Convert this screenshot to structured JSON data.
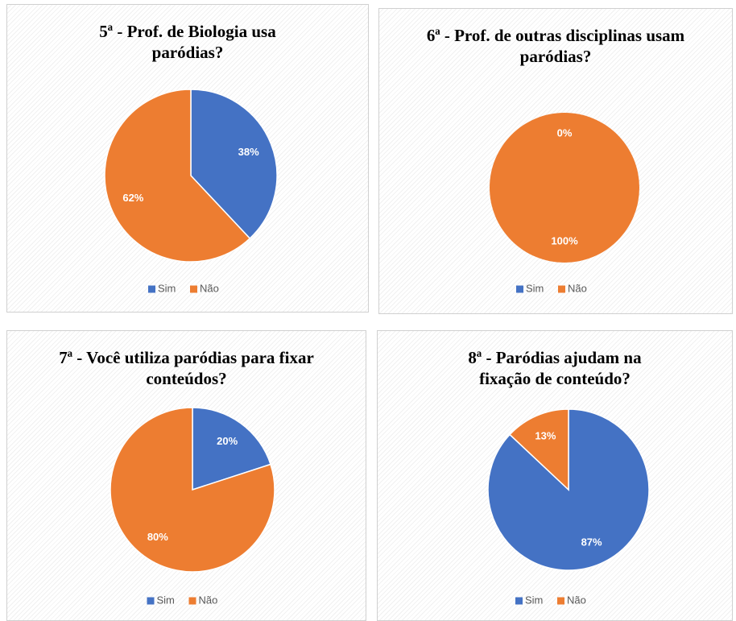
{
  "chart_data": [
    {
      "type": "pie",
      "title": "5ª - Prof. de Biologia usa paródias?",
      "categories": [
        "Sim",
        "Não"
      ],
      "values": [
        38,
        62
      ],
      "value_labels": [
        "38%",
        "62%"
      ],
      "colors": [
        "#4472c4",
        "#ed7d31"
      ],
      "legend": "bottom"
    },
    {
      "type": "pie",
      "title": "6ª - Prof. de outras disciplinas usam paródias?",
      "categories": [
        "Sim",
        "Não"
      ],
      "values": [
        0,
        100
      ],
      "value_labels": [
        "0%",
        "100%"
      ],
      "colors": [
        "#4472c4",
        "#ed7d31"
      ],
      "legend": "bottom"
    },
    {
      "type": "pie",
      "title": "7ª - Você utiliza paródias para fixar conteúdos?",
      "categories": [
        "Sim",
        "Não"
      ],
      "values": [
        20,
        80
      ],
      "value_labels": [
        "20%",
        "80%"
      ],
      "colors": [
        "#4472c4",
        "#ed7d31"
      ],
      "legend": "bottom"
    },
    {
      "type": "pie",
      "title": "8ª - Paródias ajudam na fixação de conteúdo?",
      "categories": [
        "Sim",
        "Não"
      ],
      "values": [
        87,
        13
      ],
      "value_labels": [
        "87%",
        "13%"
      ],
      "colors": [
        "#4472c4",
        "#ed7d31"
      ],
      "legend": "bottom"
    }
  ]
}
